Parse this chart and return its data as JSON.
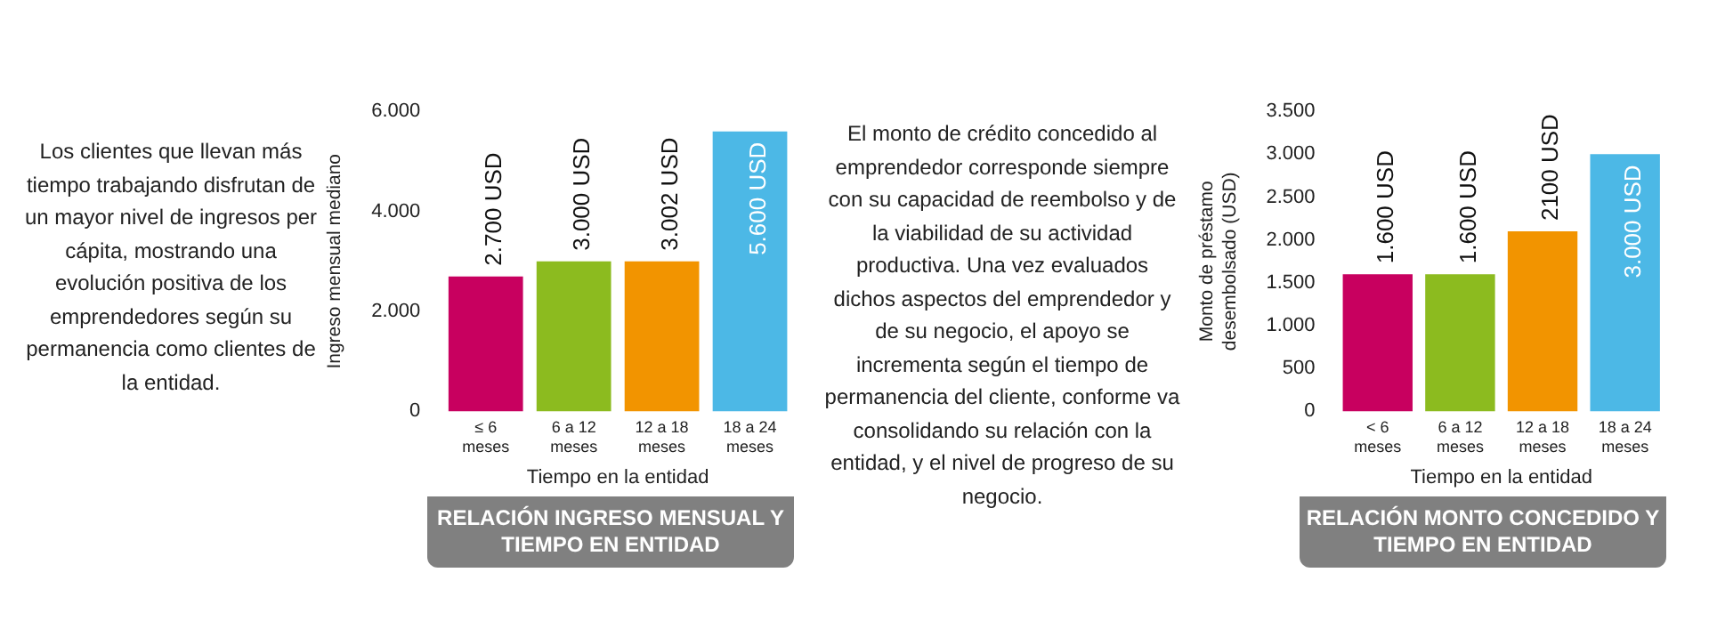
{
  "chart_data": [
    {
      "type": "other",
      "annotations": [
        "Los clientes que llevan más tiempo trabajando disfrutan de un mayor nivel de ingresos per cápita, mostrando una evolución positiva de los emprendedores según su permanencia como clientes de la entidad."
      ]
    },
    {
      "type": "bar",
      "title": "RELACIÓN INGRESO MENSUAL Y TIEMPO EN ENTIDAD",
      "xlabel": "Tiempo en la entidad",
      "ylabel": "Ingreso mensual mediano",
      "categories": [
        "≤ 6\nmeses",
        "6 a 12\nmeses",
        "12 a 18\nmeses",
        "18 a 24\nmeses"
      ],
      "values": [
        2700,
        3000,
        3002,
        5600
      ],
      "value_labels": [
        "2.700 USD",
        "3.000 USD",
        "3.002 USD",
        "5.600 USD"
      ],
      "colors": [
        "#c8005f",
        "#8cbb1f",
        "#f29400",
        "#4cb8e6"
      ],
      "ylim": [
        0,
        6000
      ],
      "yticks": [
        {
          "value": 0,
          "label": "0"
        },
        {
          "value": 2000,
          "label": "2.000"
        },
        {
          "value": 4000,
          "label": "4.000"
        },
        {
          "value": 6000,
          "label": "6.000"
        }
      ],
      "grid": false,
      "legend": false
    },
    {
      "type": "other",
      "annotations": [
        "El monto de crédito concedido al emprendedor corresponde siempre con su capacidad de reembolso y de la viabilidad de su actividad productiva. Una vez evaluados dichos aspectos del emprendedor y de su negocio, el apoyo se incrementa según el tiempo de permanencia del cliente, conforme va consolidando su relación con la entidad, y el nivel de progreso de su negocio."
      ]
    },
    {
      "type": "bar",
      "title": "RELACIÓN MONTO CONCEDIDO Y TIEMPO EN ENTIDAD",
      "xlabel": "Tiempo en la entidad",
      "ylabel": "Monto de préstamo desembolsado (USD)",
      "categories": [
        "< 6\nmeses",
        "6 a 12\nmeses",
        "12 a 18\nmeses",
        "18 a 24\nmeses"
      ],
      "values": [
        1600,
        1600,
        2100,
        3000
      ],
      "value_labels": [
        "1.600 USD",
        "1.600 USD",
        "2100 USD",
        "3.000 USD"
      ],
      "colors": [
        "#c8005f",
        "#8cbb1f",
        "#f29400",
        "#4cb8e6"
      ],
      "ylim": [
        0,
        3500
      ],
      "yticks": [
        {
          "value": 0,
          "label": "0"
        },
        {
          "value": 500,
          "label": "500"
        },
        {
          "value": 1000,
          "label": "1.000"
        },
        {
          "value": 1500,
          "label": "1.500"
        },
        {
          "value": 2000,
          "label": "2.000"
        },
        {
          "value": 2500,
          "label": "2.500"
        },
        {
          "value": 3000,
          "label": "3.000"
        },
        {
          "value": 3500,
          "label": "3.500"
        }
      ],
      "grid": false,
      "legend": false
    }
  ]
}
